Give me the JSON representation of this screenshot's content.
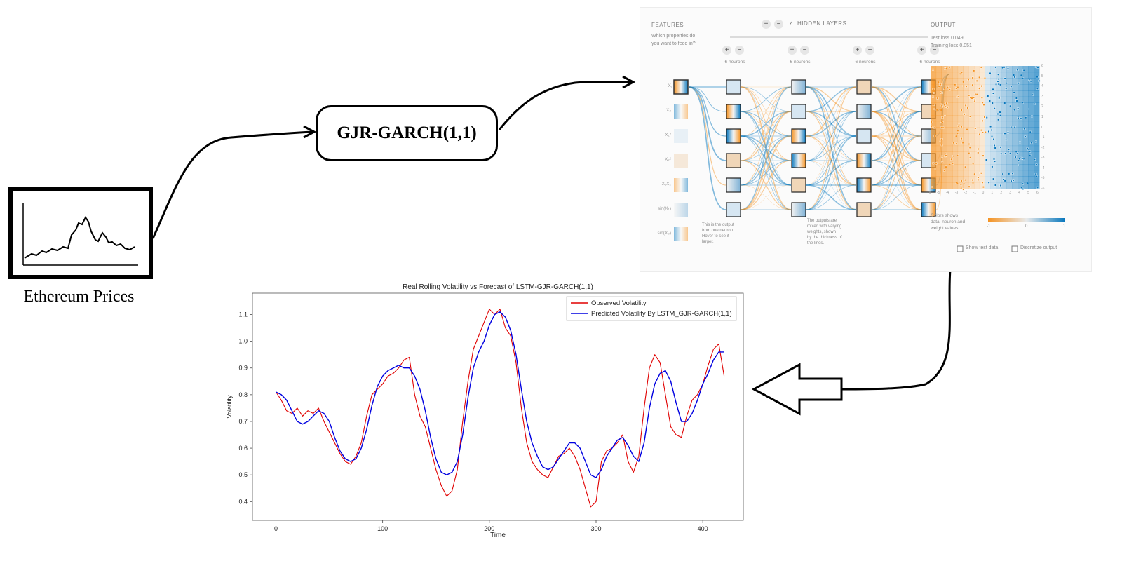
{
  "price_box": {
    "label": "Ethereum Prices"
  },
  "garch_box": {
    "label": "GJR-GARCH(1,1)"
  },
  "playground": {
    "features_title": "FEATURES",
    "features_question": [
      "Which properties do",
      "you want to feed in?"
    ],
    "hidden_layers_count": "4",
    "hidden_layers_title": "HIDDEN LAYERS",
    "plus_glyph": "+",
    "minus_glyph": "−",
    "neurons_label": "6 neurons",
    "output_title": "OUTPUT",
    "test_loss": "Test loss 0.049",
    "training_loss": "Training loss 0.051",
    "feature_labels": [
      "X₁",
      "X₂",
      "X₁²",
      "X₂²",
      "X₁X₂",
      "sin(X₁)",
      "sin(X₂)"
    ],
    "note_left": [
      "This is the output",
      "from one neuron.",
      "Hover to see it",
      "larger."
    ],
    "note_mid": [
      "The outputs are",
      "mixed with varying",
      "weights, shown",
      "by the thickness of",
      "the lines."
    ],
    "colors_note": [
      "Colors shows",
      "data, neuron and",
      "weight values."
    ],
    "legend_ticks": [
      "-1",
      "0",
      "1"
    ],
    "axis_ticks": [
      "-6",
      "-5",
      "-4",
      "-3",
      "-2",
      "-1",
      "0",
      "1",
      "2",
      "3",
      "4",
      "5",
      "6"
    ],
    "show_test_data": "Show test data",
    "discretize_output": "Discretize output"
  },
  "colors": {
    "orange": "#f59322",
    "blue": "#0877bd",
    "observed": "#e00000",
    "predicted": "#0000e0"
  },
  "chart_data": {
    "type": "line",
    "title": "Real Rolling Volatility vs Forecast of LSTM-GJR-GARCH(1,1)",
    "xlabel": "Time",
    "ylabel": "Volatility",
    "xlim": [
      -22,
      438
    ],
    "ylim": [
      0.33,
      1.18
    ],
    "xticks": [
      0,
      100,
      200,
      300,
      400
    ],
    "yticks": [
      0.4,
      0.5,
      0.6,
      0.7,
      0.8,
      0.9,
      1.0,
      1.1
    ],
    "ytick_labels": [
      "0.4",
      "0.5",
      "0.6",
      "0.7",
      "0.8",
      "0.9",
      "1.0",
      "1.1"
    ],
    "legend_position": "top-right",
    "series": [
      {
        "name": "Observed Volatility",
        "color": "#e00000",
        "x": [
          0,
          5,
          10,
          15,
          20,
          25,
          30,
          35,
          40,
          45,
          50,
          55,
          60,
          65,
          70,
          75,
          80,
          85,
          90,
          95,
          100,
          105,
          110,
          115,
          120,
          125,
          130,
          135,
          140,
          145,
          150,
          155,
          160,
          165,
          170,
          175,
          180,
          185,
          190,
          195,
          200,
          205,
          210,
          215,
          220,
          225,
          230,
          235,
          240,
          245,
          250,
          255,
          260,
          265,
          270,
          275,
          280,
          285,
          290,
          295,
          300,
          305,
          310,
          315,
          320,
          325,
          330,
          335,
          340,
          345,
          350,
          355,
          360,
          365,
          370,
          375,
          380,
          385,
          390,
          395,
          400,
          405,
          410,
          415,
          420
        ],
        "y": [
          0.81,
          0.78,
          0.74,
          0.73,
          0.75,
          0.72,
          0.74,
          0.73,
          0.75,
          0.7,
          0.66,
          0.62,
          0.58,
          0.55,
          0.54,
          0.57,
          0.62,
          0.72,
          0.8,
          0.82,
          0.84,
          0.87,
          0.88,
          0.9,
          0.93,
          0.94,
          0.8,
          0.72,
          0.68,
          0.6,
          0.52,
          0.46,
          0.42,
          0.44,
          0.52,
          0.7,
          0.85,
          0.97,
          1.02,
          1.07,
          1.12,
          1.1,
          1.12,
          1.05,
          1.02,
          0.92,
          0.75,
          0.62,
          0.55,
          0.52,
          0.5,
          0.49,
          0.53,
          0.57,
          0.58,
          0.6,
          0.57,
          0.52,
          0.45,
          0.38,
          0.4,
          0.55,
          0.59,
          0.6,
          0.62,
          0.65,
          0.55,
          0.51,
          0.57,
          0.75,
          0.9,
          0.95,
          0.92,
          0.8,
          0.68,
          0.65,
          0.64,
          0.72,
          0.78,
          0.8,
          0.84,
          0.91,
          0.97,
          0.99,
          0.87
        ]
      },
      {
        "name": "Predicted Volatility By LSTM_GJR-GARCH(1,1)",
        "color": "#0000e0",
        "x": [
          0,
          5,
          10,
          15,
          20,
          25,
          30,
          35,
          40,
          45,
          50,
          55,
          60,
          65,
          70,
          75,
          80,
          85,
          90,
          95,
          100,
          105,
          110,
          115,
          120,
          125,
          130,
          135,
          140,
          145,
          150,
          155,
          160,
          165,
          170,
          175,
          180,
          185,
          190,
          195,
          200,
          205,
          210,
          215,
          220,
          225,
          230,
          235,
          240,
          245,
          250,
          255,
          260,
          265,
          270,
          275,
          280,
          285,
          290,
          295,
          300,
          305,
          310,
          315,
          320,
          325,
          330,
          335,
          340,
          345,
          350,
          355,
          360,
          365,
          370,
          375,
          380,
          385,
          390,
          395,
          400,
          405,
          410,
          415,
          420
        ],
        "y": [
          0.81,
          0.8,
          0.78,
          0.74,
          0.7,
          0.69,
          0.7,
          0.72,
          0.74,
          0.73,
          0.7,
          0.64,
          0.59,
          0.56,
          0.55,
          0.56,
          0.6,
          0.67,
          0.76,
          0.83,
          0.87,
          0.89,
          0.9,
          0.91,
          0.9,
          0.9,
          0.87,
          0.82,
          0.74,
          0.64,
          0.56,
          0.51,
          0.5,
          0.51,
          0.55,
          0.65,
          0.79,
          0.9,
          0.96,
          1.0,
          1.06,
          1.1,
          1.11,
          1.09,
          1.04,
          0.95,
          0.82,
          0.7,
          0.62,
          0.57,
          0.53,
          0.52,
          0.53,
          0.56,
          0.59,
          0.62,
          0.62,
          0.6,
          0.55,
          0.5,
          0.49,
          0.52,
          0.57,
          0.6,
          0.63,
          0.64,
          0.61,
          0.57,
          0.55,
          0.62,
          0.75,
          0.84,
          0.88,
          0.89,
          0.85,
          0.77,
          0.7,
          0.7,
          0.73,
          0.78,
          0.84,
          0.88,
          0.93,
          0.96,
          0.96
        ]
      }
    ]
  }
}
